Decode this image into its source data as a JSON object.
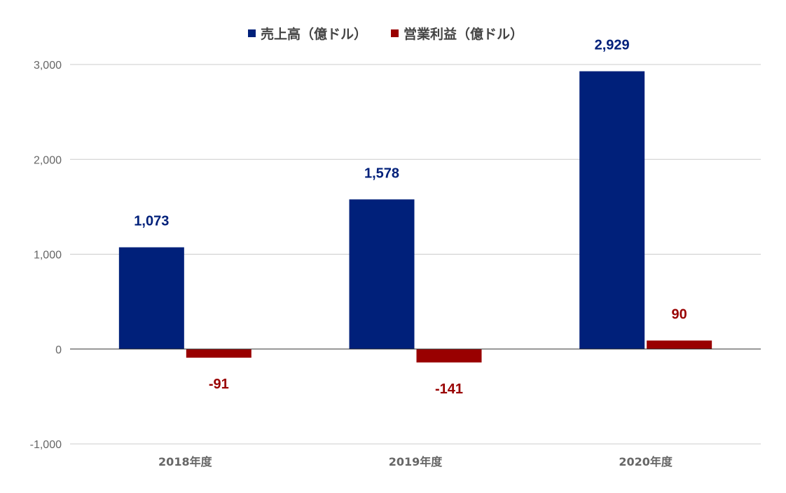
{
  "chart_data": {
    "type": "bar",
    "categories": [
      "2018年度",
      "2019年度",
      "2020年度"
    ],
    "series": [
      {
        "name": "売上高（億ドル）",
        "values": [
          1073,
          1578,
          2929
        ],
        "labels": [
          "1,073",
          "1,578",
          "2,929"
        ],
        "color": "#00207a"
      },
      {
        "name": "営業利益（億ドル）",
        "values": [
          -91,
          -141,
          90
        ],
        "labels": [
          "-91",
          "-141",
          "90"
        ],
        "color": "#990000"
      }
    ],
    "yticks": [
      {
        "value": 3000,
        "label": "3,000"
      },
      {
        "value": 2000,
        "label": "2,000"
      },
      {
        "value": 1000,
        "label": "1,000"
      },
      {
        "value": 0,
        "label": "0"
      },
      {
        "value": -1000,
        "label": "-1,000"
      }
    ],
    "ylim": [
      -1000,
      3000
    ],
    "grid": true,
    "legend_position": "top-center",
    "title": "",
    "xlabel": "",
    "ylabel": ""
  }
}
